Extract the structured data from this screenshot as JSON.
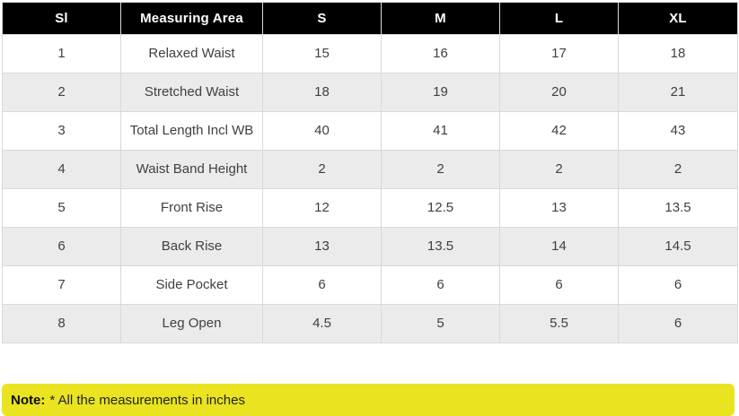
{
  "chart_data": {
    "type": "table",
    "columns": [
      "Sl",
      "Measuring Area",
      "S",
      "M",
      "L",
      "XL"
    ],
    "rows": [
      [
        "1",
        "Relaxed Waist",
        "15",
        "16",
        "17",
        "18"
      ],
      [
        "2",
        "Stretched Waist",
        "18",
        "19",
        "20",
        "21"
      ],
      [
        "3",
        "Total Length Incl WB",
        "40",
        "41",
        "42",
        "43"
      ],
      [
        "4",
        "Waist Band Height",
        "2",
        "2",
        "2",
        "2"
      ],
      [
        "5",
        "Front Rise",
        "12",
        "12.5",
        "13",
        "13.5"
      ],
      [
        "6",
        "Back Rise",
        "13",
        "13.5",
        "14",
        "14.5"
      ],
      [
        "7",
        "Side Pocket",
        "6",
        "6",
        "6",
        "6"
      ],
      [
        "8",
        "Leg Open",
        "4.5",
        "5",
        "5.5",
        "6"
      ]
    ]
  },
  "note": {
    "label": "Note:",
    "text": "* All the measurements in inches"
  },
  "colors": {
    "header_bg": "#000000",
    "header_text": "#ffffff",
    "row_stripe": "#ebebeb",
    "border": "#d9d9d9",
    "note_bg": "#e9e41f",
    "body_text": "#404040"
  }
}
